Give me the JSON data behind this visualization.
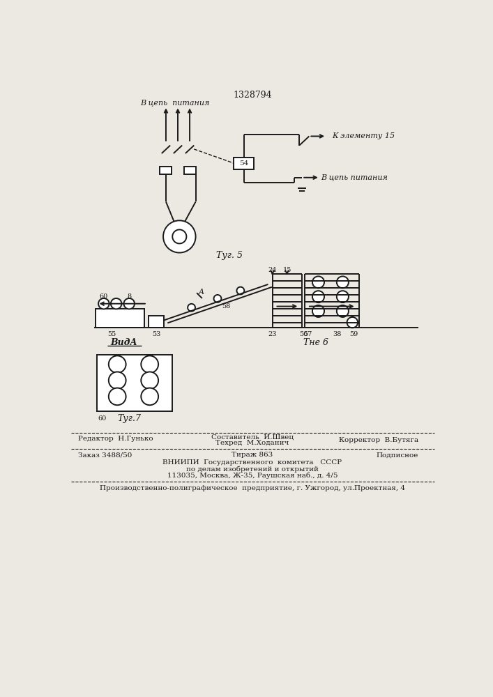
{
  "title": "1328794",
  "bg_color": "#ece9e3",
  "line_color": "#1a1a1a",
  "fig5_label": "Τуг. 5",
  "fig6_label": "Τне 6",
  "fig7_label": "Τуг.7",
  "vidA_label": "ВидА",
  "text_v_cep1": "В цепь  питания",
  "text_k_elem": "К элементу 15",
  "text_v_cep2": "В цепь питания",
  "footer_editor": "Редактор  Н.Гунько",
  "footer_sostavitel": "Составитель  И.Швец",
  "footer_tehred": "Техред  М.Ходанич",
  "footer_korrektor": "Корректор  В.Бутяга",
  "footer_zakaz": "Заказ 3488/50",
  "footer_tirazh": "Тираж 863",
  "footer_podpisnoe": "Подписное",
  "footer_vniip1": "ВНИИПИ  Государственного  комитета   СССР",
  "footer_vniip2": "по делам изобретений и открытий",
  "footer_vniip3": "113035, Москва, Ж-35, Раушская наб., д. 4/5",
  "footer_proizv": "Производственно-полиграфическое  предприятие, г. Ужгород, ул.Проектная, 4"
}
